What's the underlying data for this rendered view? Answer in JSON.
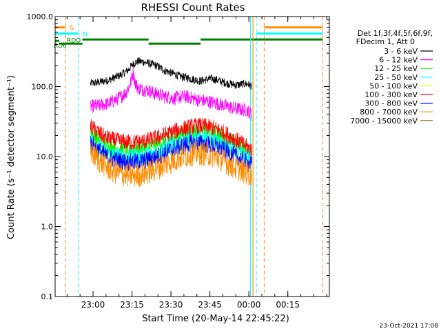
{
  "chart_data": {
    "type": "line",
    "title": "RHESSI Count Rates",
    "xlabel": "Start Time (20-May-14 22:45:22)",
    "ylabel": "Count Rate (s⁻¹ detector segment⁻¹)",
    "yscale": "log",
    "ylim": [
      0.1,
      1000.0
    ],
    "x_unit": "minutes after 22:45:22",
    "xlim": [
      0,
      105.6
    ],
    "x_ticks": [
      {
        "label": "23:00",
        "x": 14.6
      },
      {
        "label": "23:15",
        "x": 29.6
      },
      {
        "label": "23:30",
        "x": 44.6
      },
      {
        "label": "23:45",
        "x": 59.6
      },
      {
        "label": "00:00",
        "x": 74.6
      },
      {
        "label": "00:15",
        "x": 89.6
      }
    ],
    "y_ticks": [
      {
        "label": "0.1",
        "y": 0.1
      },
      {
        "label": "1.0",
        "y": 1.0
      },
      {
        "label": "10.0",
        "y": 10.0
      },
      {
        "label": "100.0",
        "y": 100.0
      },
      {
        "label": "1000.0",
        "y": 1000.0
      }
    ],
    "legend_header": [
      "Det 1f,3f,4f,5f,6f,9f,",
      "FDecim 1, Att 0"
    ],
    "legend_position": "right",
    "series": [
      {
        "name": "3 - 6 keV",
        "color": "#000000",
        "x": [
          13.6,
          17,
          21,
          25,
          28,
          30,
          32,
          34,
          36,
          38,
          40,
          42,
          44,
          46,
          48,
          50,
          52,
          54,
          56,
          58,
          60,
          62,
          64,
          66,
          68,
          70,
          72,
          74,
          75.7
        ],
        "y": [
          110,
          115,
          125,
          145,
          170,
          210,
          230,
          225,
          215,
          205,
          190,
          170,
          160,
          150,
          140,
          135,
          130,
          125,
          120,
          125,
          130,
          125,
          118,
          112,
          108,
          105,
          108,
          110,
          100
        ]
      },
      {
        "name": "6 - 12 keV",
        "color": "#ff00ff",
        "x": [
          13.6,
          17,
          21,
          25,
          27,
          29,
          30,
          31,
          32,
          34,
          36,
          38,
          40,
          42,
          44,
          46,
          48,
          50,
          52,
          54,
          56,
          58,
          60,
          62,
          64,
          66,
          68,
          70,
          72,
          74,
          75.7
        ],
        "y": [
          52,
          53,
          58,
          70,
          80,
          110,
          160,
          110,
          95,
          90,
          88,
          80,
          78,
          72,
          70,
          68,
          70,
          72,
          70,
          66,
          63,
          62,
          60,
          58,
          55,
          52,
          50,
          48,
          47,
          46,
          40
        ]
      },
      {
        "name": "12 - 25 keV",
        "color": "#00ff00",
        "x": [
          13.6,
          16,
          19,
          22,
          25,
          28,
          31,
          34,
          37,
          40,
          43,
          46,
          49,
          52,
          55,
          58,
          61,
          64,
          67,
          70,
          73,
          75.7
        ],
        "y": [
          22,
          18,
          15,
          13.5,
          13,
          12.5,
          12.5,
          13,
          14,
          15.5,
          17,
          19,
          21,
          22.5,
          23,
          22.5,
          21.5,
          19.5,
          17,
          15,
          12.5,
          10
        ]
      },
      {
        "name": "25 - 50 keV",
        "color": "#00ffff",
        "x": [
          13.6,
          16,
          19,
          22,
          25,
          28,
          31,
          34,
          37,
          40,
          43,
          46,
          49,
          52,
          55,
          58,
          61,
          64,
          67,
          70,
          73,
          75.7
        ],
        "y": [
          17,
          14,
          11.5,
          10.5,
          10,
          9.8,
          9.8,
          10,
          11,
          12,
          13.5,
          15,
          16.5,
          17.5,
          18,
          17.5,
          16.5,
          15,
          13.5,
          12,
          10,
          9
        ]
      },
      {
        "name": "50 - 100 keV",
        "color": "#ffff00",
        "x": [],
        "y": []
      },
      {
        "name": "100 - 300 keV",
        "color": "#ff0000",
        "x": [
          13.6,
          16,
          19,
          22,
          25,
          28,
          31,
          34,
          37,
          40,
          43,
          46,
          49,
          52,
          55,
          58,
          61,
          64,
          67,
          70,
          73,
          75.7
        ],
        "y": [
          27,
          23,
          19,
          17.5,
          16.5,
          16,
          16,
          16.5,
          17.5,
          19,
          21,
          23,
          25,
          26.5,
          27.5,
          27,
          25.5,
          23,
          20,
          17,
          14.5,
          12.5
        ]
      },
      {
        "name": "300 - 800 keV",
        "color": "#0000ff",
        "x": [
          13.6,
          16,
          19,
          22,
          25,
          28,
          31,
          34,
          37,
          40,
          43,
          46,
          49,
          52,
          55,
          58,
          61,
          64,
          67,
          70,
          73,
          75.7
        ],
        "y": [
          16,
          13,
          10.5,
          9.2,
          8.6,
          8.3,
          8.3,
          8.6,
          9.3,
          10.2,
          11.5,
          13,
          14.3,
          15.2,
          15.6,
          15.2,
          14.2,
          12.8,
          11.2,
          9.8,
          8.5,
          7.5
        ]
      },
      {
        "name": "800 - 7000 keV",
        "color": "#ff8c00",
        "x": [
          13.6,
          16,
          19,
          22,
          25,
          28,
          31,
          34,
          37,
          40,
          43,
          46,
          49,
          52,
          55,
          58,
          61,
          64,
          67,
          70,
          73,
          75.7
        ],
        "y": [
          12,
          9.5,
          7.5,
          6.3,
          5.7,
          5.4,
          5.4,
          5.6,
          6.2,
          7,
          8,
          9,
          10,
          10.8,
          11.2,
          10.9,
          10.1,
          9,
          7.8,
          6.8,
          6,
          5.5
        ]
      },
      {
        "name": "7000 - 15000 keV",
        "color": "#8b6914",
        "x": [],
        "y": []
      }
    ],
    "attenuator_states": {
      "color": "#ff8c00",
      "label": "S",
      "segments": [
        {
          "x0": -1,
          "x1": 4,
          "y": 700
        },
        {
          "x0": 80.5,
          "x1": 103,
          "y": 700
        }
      ],
      "transitions": [
        4,
        80.5,
        103
      ]
    },
    "night_states": {
      "color": "#00ffff",
      "label": "N",
      "segments": [
        {
          "x0": -1,
          "x1": 9,
          "y": 570
        },
        {
          "x0": 77.5,
          "x1": 103,
          "y": 570
        }
      ],
      "transitions": [
        -0.2,
        9,
        77.5
      ]
    },
    "decimation_states": {
      "color": "#008000",
      "labels": [
        "RD6",
        "RDO"
      ],
      "segments": [
        {
          "x0": -1,
          "x1": 1.5,
          "y": 450
        },
        {
          "x0": 1.5,
          "x1": 10.5,
          "y": 410
        },
        {
          "x0": 10.5,
          "x1": 36,
          "y": 470
        },
        {
          "x0": 36,
          "x1": 56,
          "y": 410
        },
        {
          "x0": 56,
          "x1": 103,
          "y": 470
        }
      ]
    },
    "grid": false
  },
  "footer": {
    "timestamp": "23-Oct-2021 17:08"
  }
}
